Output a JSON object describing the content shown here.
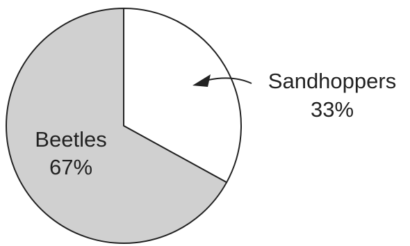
{
  "chart_data": {
    "type": "pie",
    "title": "",
    "slices": [
      {
        "label": "Sandhoppers",
        "value": 33,
        "value_label": "33%",
        "color": "#ffffff"
      },
      {
        "label": "Beetles",
        "value": 67,
        "value_label": "67%",
        "color": "#d0d0d0"
      }
    ],
    "start_angle": "12 o'clock",
    "direction": "clockwise",
    "outline_color": "#222222",
    "legend": "none"
  }
}
